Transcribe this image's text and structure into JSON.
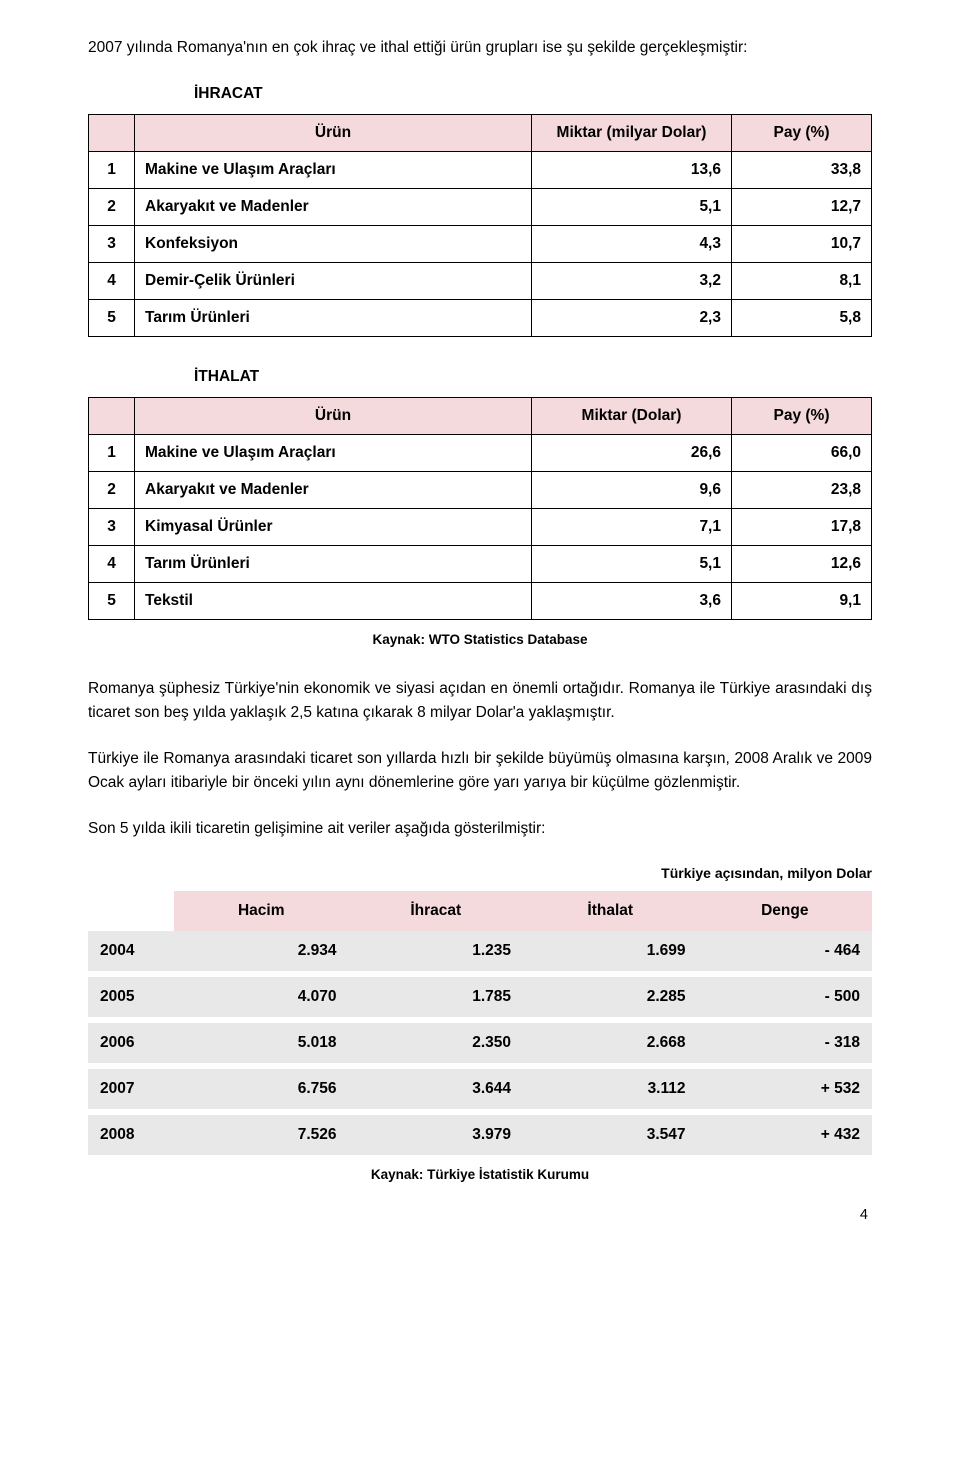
{
  "intro": "2007 yılında Romanya'nın en çok ihraç ve ithal ettiği ürün grupları ise şu şekilde gerçekleşmiştir:",
  "ihracat": {
    "title": "İHRACAT",
    "columns": [
      "Ürün",
      "Miktar (milyar Dolar)",
      "Pay (%)"
    ],
    "rows": [
      {
        "idx": "1",
        "name": "Makine ve Ulaşım Araçları",
        "miktar": "13,6",
        "pay": "33,8"
      },
      {
        "idx": "2",
        "name": "Akaryakıt ve Madenler",
        "miktar": "5,1",
        "pay": "12,7"
      },
      {
        "idx": "3",
        "name": "Konfeksiyon",
        "miktar": "4,3",
        "pay": "10,7"
      },
      {
        "idx": "4",
        "name": "Demir-Çelik Ürünleri",
        "miktar": "3,2",
        "pay": "8,1"
      },
      {
        "idx": "5",
        "name": "Tarım Ürünleri",
        "miktar": "2,3",
        "pay": "5,8"
      }
    ]
  },
  "ithalat": {
    "title": "İTHALAT",
    "columns": [
      "Ürün",
      "Miktar (Dolar)",
      "Pay (%)"
    ],
    "rows": [
      {
        "idx": "1",
        "name": "Makine ve Ulaşım Araçları",
        "miktar": "26,6",
        "pay": "66,0"
      },
      {
        "idx": "2",
        "name": "Akaryakıt ve Madenler",
        "miktar": "9,6",
        "pay": "23,8"
      },
      {
        "idx": "3",
        "name": "Kimyasal Ürünler",
        "miktar": "7,1",
        "pay": "17,8"
      },
      {
        "idx": "4",
        "name": "Tarım Ürünleri",
        "miktar": "5,1",
        "pay": "12,6"
      },
      {
        "idx": "5",
        "name": "Tekstil",
        "miktar": "3,6",
        "pay": "9,1"
      }
    ]
  },
  "source1": "Kaynak: WTO Statistics Database",
  "para1": "Romanya şüphesiz Türkiye'nin ekonomik ve siyasi açıdan en önemli ortağıdır. Romanya ile Türkiye arasındaki dış ticaret son beş yılda yaklaşık 2,5 katına çıkarak 8 milyar Dolar'a yaklaşmıştır.",
  "para2": "Türkiye ile Romanya arasındaki ticaret son yıllarda hızlı bir şekilde büyümüş olmasına karşın, 2008 Aralık ve 2009 Ocak ayları itibariyle bir önceki yılın aynı dönemlerine göre yarı yarıya bir küçülme gözlenmiştir.",
  "para3": "Son 5 yılda ikili ticaretin gelişimine ait veriler aşağıda gösterilmiştir:",
  "unit_note": "Türkiye açısından, milyon Dolar",
  "trade": {
    "columns": [
      "Hacim",
      "İhracat",
      "İthalat",
      "Denge"
    ],
    "rows": [
      {
        "year": "2004",
        "hacim": "2.934",
        "ihracat": "1.235",
        "ithalat": "1.699",
        "denge": "- 464"
      },
      {
        "year": "2005",
        "hacim": "4.070",
        "ihracat": "1.785",
        "ithalat": "2.285",
        "denge": "- 500"
      },
      {
        "year": "2006",
        "hacim": "5.018",
        "ihracat": "2.350",
        "ithalat": "2.668",
        "denge": "- 318"
      },
      {
        "year": "2007",
        "hacim": "6.756",
        "ihracat": "3.644",
        "ithalat": "3.112",
        "denge": "+ 532"
      },
      {
        "year": "2008",
        "hacim": "7.526",
        "ihracat": "3.979",
        "ithalat": "3.547",
        "denge": "+ 432"
      }
    ]
  },
  "source2": "Kaynak: Türkiye İstatistik Kurumu",
  "pagenum": "4",
  "colors": {
    "header_bg": "#f4d9dd",
    "row_bg": "#e8e8e8",
    "border": "#000000",
    "text": "#000000",
    "background": "#ffffff"
  }
}
